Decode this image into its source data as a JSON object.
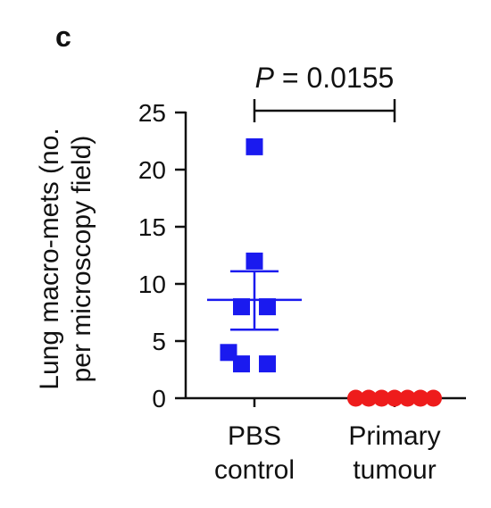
{
  "panel_label": "c",
  "chart_data": {
    "type": "scatter",
    "ylabel_lines": [
      "Lung macro-mets (no.",
      "per microscopy field)"
    ],
    "categories": [
      {
        "lines": [
          "PBS",
          "control"
        ]
      },
      {
        "lines": [
          "Primary",
          "tumour"
        ]
      }
    ],
    "ylim": [
      0,
      25
    ],
    "yticks": [
      0,
      5,
      10,
      15,
      20,
      25
    ],
    "series": [
      {
        "category_index": 0,
        "marker": "square",
        "color": "#1a1aef",
        "points": [
          {
            "value": 22,
            "offset": 0
          },
          {
            "value": 12,
            "offset": 0
          },
          {
            "value": 8,
            "offset": -1
          },
          {
            "value": 8,
            "offset": 1
          },
          {
            "value": 4,
            "offset": -2
          },
          {
            "value": 3,
            "offset": -1
          },
          {
            "value": 3,
            "offset": 1
          }
        ],
        "mean": 8.6,
        "error_low": 6.0,
        "error_high": 11.1
      },
      {
        "category_index": 1,
        "marker": "circle",
        "color": "#ee1c1c",
        "points": [
          {
            "value": 0,
            "offset": -3
          },
          {
            "value": 0,
            "offset": -2
          },
          {
            "value": 0,
            "offset": -1
          },
          {
            "value": 0,
            "offset": 0
          },
          {
            "value": 0,
            "offset": 1
          },
          {
            "value": 0,
            "offset": 2
          },
          {
            "value": 0,
            "offset": 3
          }
        ],
        "mean": 0,
        "error_low": 0,
        "error_high": 0
      }
    ],
    "significance": {
      "from": 0,
      "to": 1,
      "label_italic": "P",
      "label_rest": " = 0.0155"
    }
  }
}
